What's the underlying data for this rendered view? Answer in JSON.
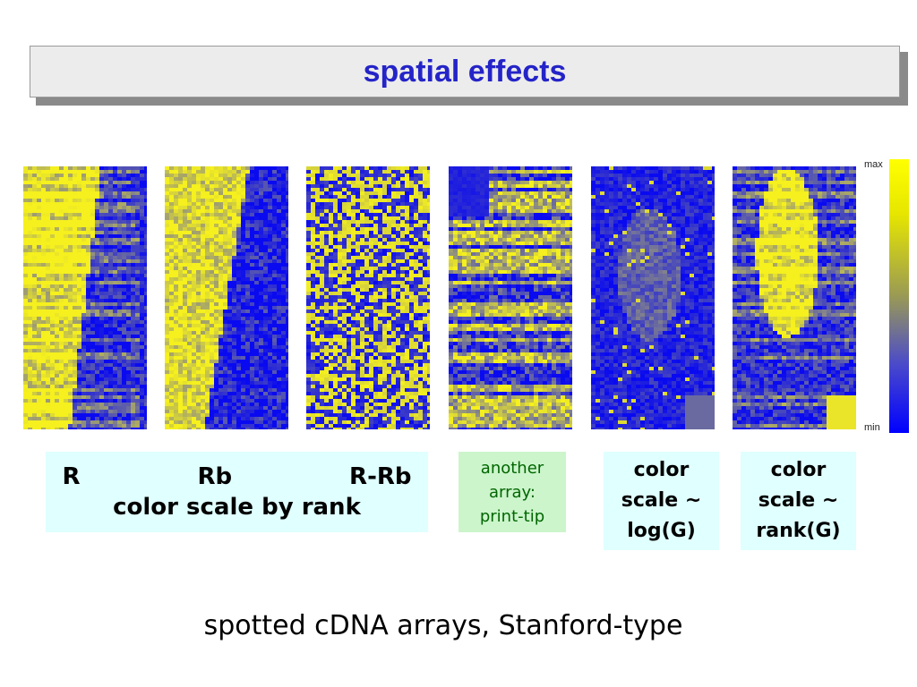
{
  "title": "spatial effects",
  "panels": [
    {
      "id": "R",
      "pattern": "left-yellow"
    },
    {
      "id": "Rb",
      "pattern": "left-yellow-smooth"
    },
    {
      "id": "R-Rb",
      "pattern": "mixed"
    },
    {
      "id": "print-tip",
      "pattern": "bands"
    },
    {
      "id": "logG",
      "pattern": "mostly-blue"
    },
    {
      "id": "rankG",
      "pattern": "center-yellow"
    }
  ],
  "colorbar": {
    "max_label": "max",
    "min_label": "min",
    "high_color": "#ffff00",
    "low_color": "#0000ff"
  },
  "captions": {
    "main_labels": [
      "R",
      "Rb",
      "R-Rb"
    ],
    "main_sub": "color scale by rank",
    "print_tip": [
      "another",
      "array:",
      "print-tip"
    ],
    "log_g": [
      "color",
      "scale ~",
      "log(G)"
    ],
    "rank_g": [
      "color",
      "scale ~",
      "rank(G)"
    ]
  },
  "footer": "spotted cDNA arrays, Stanford-type"
}
